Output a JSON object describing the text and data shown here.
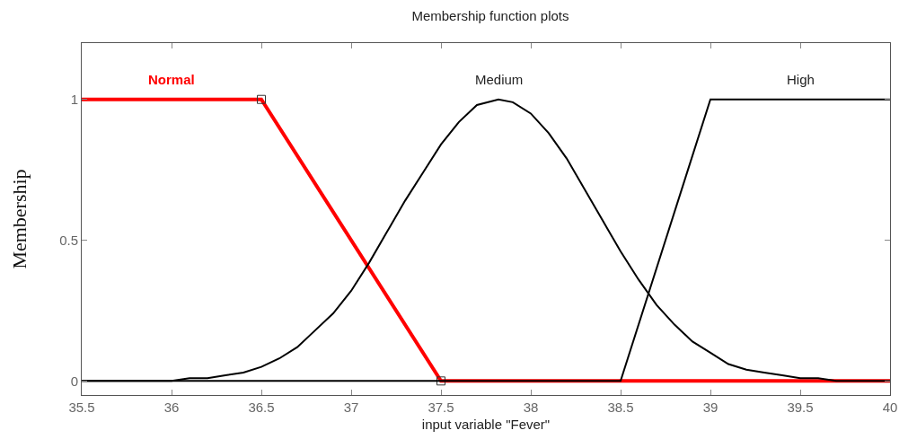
{
  "chart_data": {
    "type": "line",
    "title": "Membership function plots",
    "xlabel": "input variable \"Fever\"",
    "ylabel": "Membership",
    "xlim": [
      35.5,
      40
    ],
    "ylim": [
      -0.05,
      1.2
    ],
    "xticks": [
      35.5,
      36,
      36.5,
      37,
      37.5,
      38,
      38.5,
      39,
      39.5,
      40
    ],
    "yticks": [
      0,
      0.5,
      1
    ],
    "legend": false,
    "series": [
      {
        "name": "Normal",
        "color": "#ff0000",
        "marker": "square",
        "x": [
          35.5,
          36.5,
          37.5,
          40
        ],
        "values": [
          1,
          1,
          0,
          0
        ]
      },
      {
        "name": "Medium",
        "color": "#000000",
        "x": [
          35.5,
          35.6,
          35.7,
          35.8,
          35.9,
          36.0,
          36.1,
          36.2,
          36.3,
          36.4,
          36.5,
          36.6,
          36.7,
          36.8,
          36.9,
          37.0,
          37.1,
          37.2,
          37.3,
          37.4,
          37.5,
          37.6,
          37.7,
          37.82,
          37.9,
          38.0,
          38.1,
          38.2,
          38.3,
          38.4,
          38.5,
          38.6,
          38.7,
          38.8,
          38.9,
          39.0,
          39.1,
          39.2,
          39.3,
          39.4,
          39.5,
          39.6,
          39.7,
          39.8,
          39.9,
          40.0
        ],
        "values": [
          0,
          0,
          0,
          0,
          0,
          0,
          0.01,
          0.01,
          0.02,
          0.03,
          0.05,
          0.08,
          0.12,
          0.18,
          0.24,
          0.32,
          0.42,
          0.53,
          0.64,
          0.74,
          0.84,
          0.92,
          0.98,
          1,
          0.99,
          0.95,
          0.88,
          0.79,
          0.68,
          0.57,
          0.46,
          0.36,
          0.27,
          0.2,
          0.14,
          0.1,
          0.06,
          0.04,
          0.03,
          0.02,
          0.01,
          0.01,
          0,
          0,
          0,
          0
        ]
      },
      {
        "name": "High",
        "color": "#000000",
        "x": [
          35.5,
          38.5,
          39,
          40
        ],
        "values": [
          0,
          0,
          1,
          1
        ]
      }
    ]
  }
}
